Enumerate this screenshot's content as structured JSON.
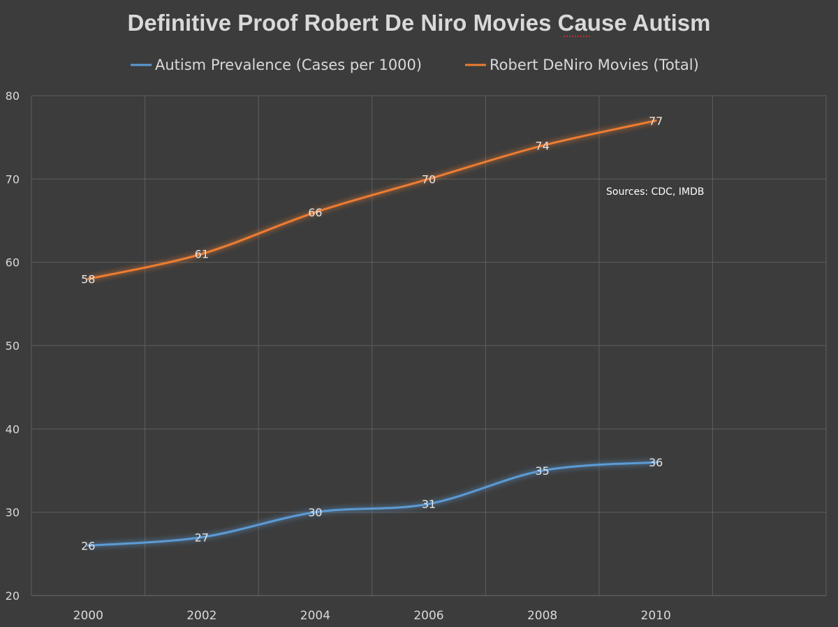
{
  "chart_data": {
    "type": "line",
    "title": "Definitive Proof Robert De Niro Movies Cause Autism",
    "xlabel": "",
    "ylabel": "",
    "categories": [
      "2000",
      "2002",
      "2004",
      "2006",
      "2008",
      "2010"
    ],
    "x_ticks": [
      "2000",
      "2002",
      "2004",
      "2006",
      "2008",
      "2010",
      ""
    ],
    "ylim": [
      20,
      80
    ],
    "y_ticks": [
      20,
      30,
      40,
      50,
      60,
      70,
      80
    ],
    "grid": true,
    "legend_position": "top",
    "annotation": "Sources: CDC, IMDB",
    "series": [
      {
        "name": "Autism Prevalence (Cases per 1000)",
        "color": "#5b9bd5",
        "values": [
          26,
          27,
          30,
          31,
          35,
          36
        ]
      },
      {
        "name": "Robert DeNiro Movies (Total)",
        "color": "#ed7d31",
        "values": [
          58,
          61,
          66,
          70,
          74,
          77
        ]
      }
    ]
  }
}
